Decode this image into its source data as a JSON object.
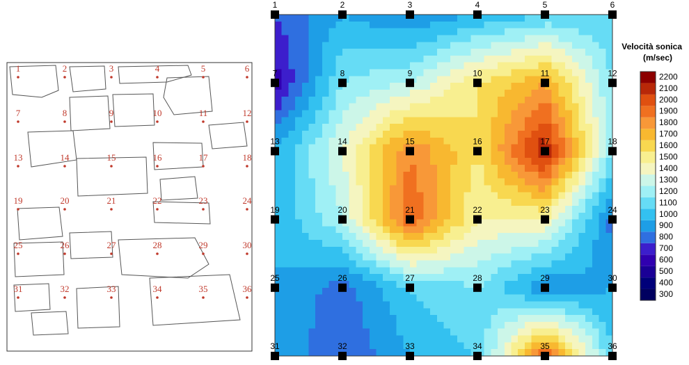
{
  "chart_data": {
    "type": "contour",
    "colorbar_title": [
      "Velocità sonica",
      "(m/sec)"
    ],
    "point_labels": [
      [
        "1",
        "2",
        "3",
        "4",
        "5",
        "6"
      ],
      [
        "7",
        "8",
        "9",
        "10",
        "11",
        "12"
      ],
      [
        "13",
        "14",
        "15",
        "16",
        "17",
        "18"
      ],
      [
        "19",
        "20",
        "21",
        "22",
        "23",
        "24"
      ],
      [
        "25",
        "26",
        "27",
        "28",
        "29",
        "30"
      ],
      [
        "31",
        "32",
        "33",
        "34",
        "35",
        "36"
      ]
    ],
    "z": [
      [
        800,
        1000,
        900,
        1000,
        1100,
        1100
      ],
      [
        650,
        1200,
        1300,
        1600,
        1800,
        1200
      ],
      [
        1000,
        1400,
        1900,
        1600,
        2200,
        1200
      ],
      [
        1000,
        1300,
        2000,
        1500,
        1500,
        850
      ],
      [
        1000,
        850,
        1100,
        1200,
        900,
        1000
      ],
      [
        1000,
        800,
        1000,
        1100,
        2000,
        1100
      ]
    ],
    "levels": [
      300,
      400,
      500,
      600,
      700,
      800,
      900,
      1000,
      1100,
      1200,
      1300,
      1400,
      1500,
      1600,
      1700,
      1800,
      1900,
      2000,
      2100,
      2200
    ],
    "colors": [
      "#000060",
      "#00007a",
      "#1a0096",
      "#3000b0",
      "#3c1ecc",
      "#2f6fe0",
      "#1e9ee6",
      "#33c1f0",
      "#66dcf5",
      "#9ff0f5",
      "#ccf6e8",
      "#f5f5c0",
      "#f8ef90",
      "#f8d850",
      "#f8b830",
      "#f89838",
      "#f07020",
      "#e05010",
      "#b82808",
      "#8c0000"
    ]
  }
}
